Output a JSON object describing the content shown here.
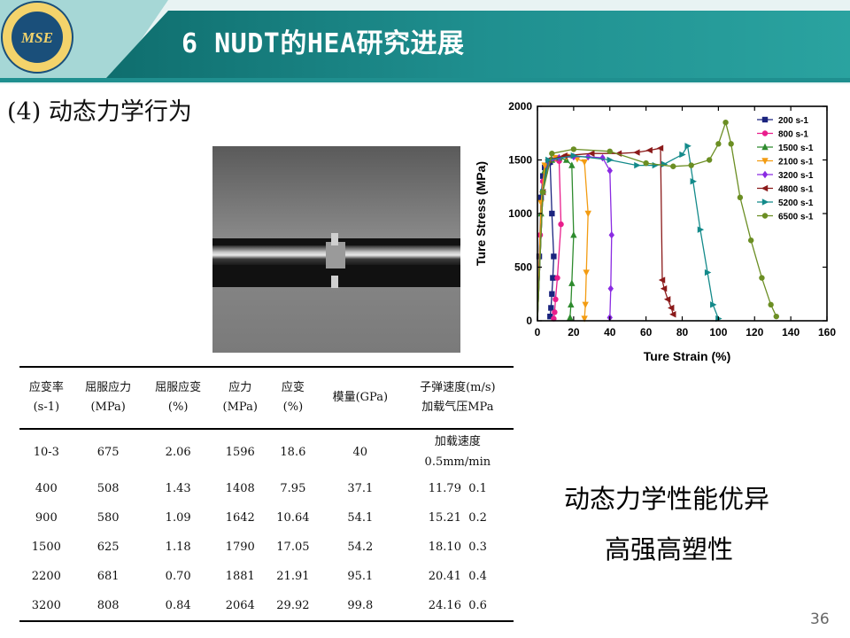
{
  "header": {
    "title": "6 NUDT的HEA研究进展",
    "logo_text": "MSE",
    "logo_ring_text": "国防科学技术大学 材料科学与工程 · 材料科学与工程"
  },
  "subtitle": "(4) 动态力学行为",
  "table": {
    "headers": [
      {
        "line1": "应变率",
        "line2": "(s-1)"
      },
      {
        "line1": "屈服应力",
        "line2": "(MPa)"
      },
      {
        "line1": "屈服应变",
        "line2": "(%)"
      },
      {
        "line1": "应力",
        "line2": "(MPa)"
      },
      {
        "line1": "应变",
        "line2": "(%)"
      },
      {
        "line1": "模量(GPa)",
        "line2": ""
      },
      {
        "line1": "子弹速度(m/s)",
        "line2": "加载气压MPa"
      }
    ],
    "rows": [
      {
        "rate": "10-3",
        "yield_stress": "675",
        "yield_strain": "2.06",
        "stress": "1596",
        "strain": "18.6",
        "modulus": "40",
        "speed": "加载速度",
        "pressure": "0.5mm/min"
      },
      {
        "rate": "400",
        "yield_stress": "508",
        "yield_strain": "1.43",
        "stress": "1408",
        "strain": "7.95",
        "modulus": "37.1",
        "speed": "11.79",
        "pressure": "0.1"
      },
      {
        "rate": "900",
        "yield_stress": "580",
        "yield_strain": "1.09",
        "stress": "1642",
        "strain": "10.64",
        "modulus": "54.1",
        "speed": "15.21",
        "pressure": "0.2"
      },
      {
        "rate": "1500",
        "yield_stress": "625",
        "yield_strain": "1.18",
        "stress": "1790",
        "strain": "17.05",
        "modulus": "54.2",
        "speed": "18.10",
        "pressure": "0.3"
      },
      {
        "rate": "2200",
        "yield_stress": "681",
        "yield_strain": "0.70",
        "stress": "1881",
        "strain": "21.91",
        "modulus": "95.1",
        "speed": "20.41",
        "pressure": "0.4"
      },
      {
        "rate": "3200",
        "yield_stress": "808",
        "yield_strain": "0.84",
        "stress": "2064",
        "strain": "29.92",
        "modulus": "99.8",
        "speed": "24.16",
        "pressure": "0.6"
      }
    ]
  },
  "conclusion": {
    "line1": "动态力学性能优异",
    "line2": "高强高塑性"
  },
  "page_number": "36",
  "colors": {
    "header_teal": "#1f8f8f",
    "header_light": "#e8f3f3"
  },
  "chart_data": {
    "type": "line",
    "xlabel": "Ture Strain (%)",
    "ylabel": "Ture Stress (MPa)",
    "xlim": [
      0,
      160
    ],
    "ylim": [
      0,
      2000
    ],
    "xticks": [
      "0",
      "20",
      "40",
      "60",
      "80",
      "100",
      "120",
      "140",
      "160"
    ],
    "yticks": [
      "0",
      "500",
      "1000",
      "1500",
      "2000"
    ],
    "legend_position": "top-right",
    "series": [
      {
        "name": "200 s-1",
        "color": "#1a237e",
        "marker": "square",
        "x": [
          0,
          1,
          2,
          3,
          4,
          6,
          7,
          8,
          9,
          8.5,
          8,
          7.5,
          7
        ],
        "y": [
          0,
          600,
          1150,
          1350,
          1430,
          1470,
          1480,
          1000,
          600,
          400,
          250,
          120,
          40
        ]
      },
      {
        "name": "800 s-1",
        "color": "#e91e8c",
        "marker": "circle",
        "x": [
          0,
          1.5,
          3,
          5,
          8,
          10,
          12,
          13,
          11,
          10,
          9.5,
          9
        ],
        "y": [
          0,
          800,
          1300,
          1440,
          1500,
          1510,
          1490,
          900,
          400,
          200,
          80,
          20
        ]
      },
      {
        "name": "1500 s-1",
        "color": "#2e8b2e",
        "marker": "triangle-up",
        "x": [
          0,
          2,
          4,
          8,
          12,
          16,
          19,
          20,
          19,
          18.5,
          18
        ],
        "y": [
          0,
          1000,
          1400,
          1500,
          1520,
          1500,
          1450,
          800,
          350,
          150,
          30
        ]
      },
      {
        "name": "2100 s-1",
        "color": "#f39c12",
        "marker": "triangle-down",
        "x": [
          0,
          2,
          4,
          10,
          16,
          22,
          26,
          28,
          27,
          26.5,
          26
        ],
        "y": [
          0,
          1100,
          1450,
          1520,
          1530,
          1510,
          1480,
          1000,
          450,
          150,
          20
        ]
      },
      {
        "name": "3200 s-1",
        "color": "#8a2be2",
        "marker": "diamond",
        "x": [
          0,
          3,
          6,
          12,
          20,
          28,
          36,
          40,
          41,
          40.5,
          40
        ],
        "y": [
          0,
          1200,
          1480,
          1520,
          1530,
          1530,
          1520,
          1400,
          800,
          300,
          30
        ]
      },
      {
        "name": "4800 s-1",
        "color": "#8b1a1a",
        "marker": "triangle-left",
        "x": [
          0,
          3,
          6,
          15,
          30,
          45,
          55,
          62,
          68,
          69,
          70,
          72,
          74,
          75
        ],
        "y": [
          0,
          1200,
          1500,
          1540,
          1560,
          1560,
          1570,
          1590,
          1610,
          380,
          300,
          200,
          120,
          60
        ]
      },
      {
        "name": "5200 s-1",
        "color": "#138a8a",
        "marker": "triangle-right",
        "x": [
          0,
          3,
          6,
          20,
          40,
          55,
          65,
          70,
          80,
          83,
          86,
          90,
          94,
          97,
          100
        ],
        "y": [
          0,
          1200,
          1500,
          1540,
          1500,
          1450,
          1450,
          1460,
          1550,
          1630,
          1300,
          850,
          450,
          150,
          20
        ]
      },
      {
        "name": "6500 s-1",
        "color": "#6b8e23",
        "marker": "circle",
        "x": [
          0,
          3,
          8,
          20,
          40,
          60,
          75,
          85,
          95,
          100,
          104,
          107,
          112,
          118,
          124,
          129,
          132
        ],
        "y": [
          0,
          1200,
          1560,
          1600,
          1580,
          1470,
          1440,
          1450,
          1500,
          1650,
          1850,
          1650,
          1150,
          750,
          400,
          150,
          40
        ]
      }
    ]
  }
}
